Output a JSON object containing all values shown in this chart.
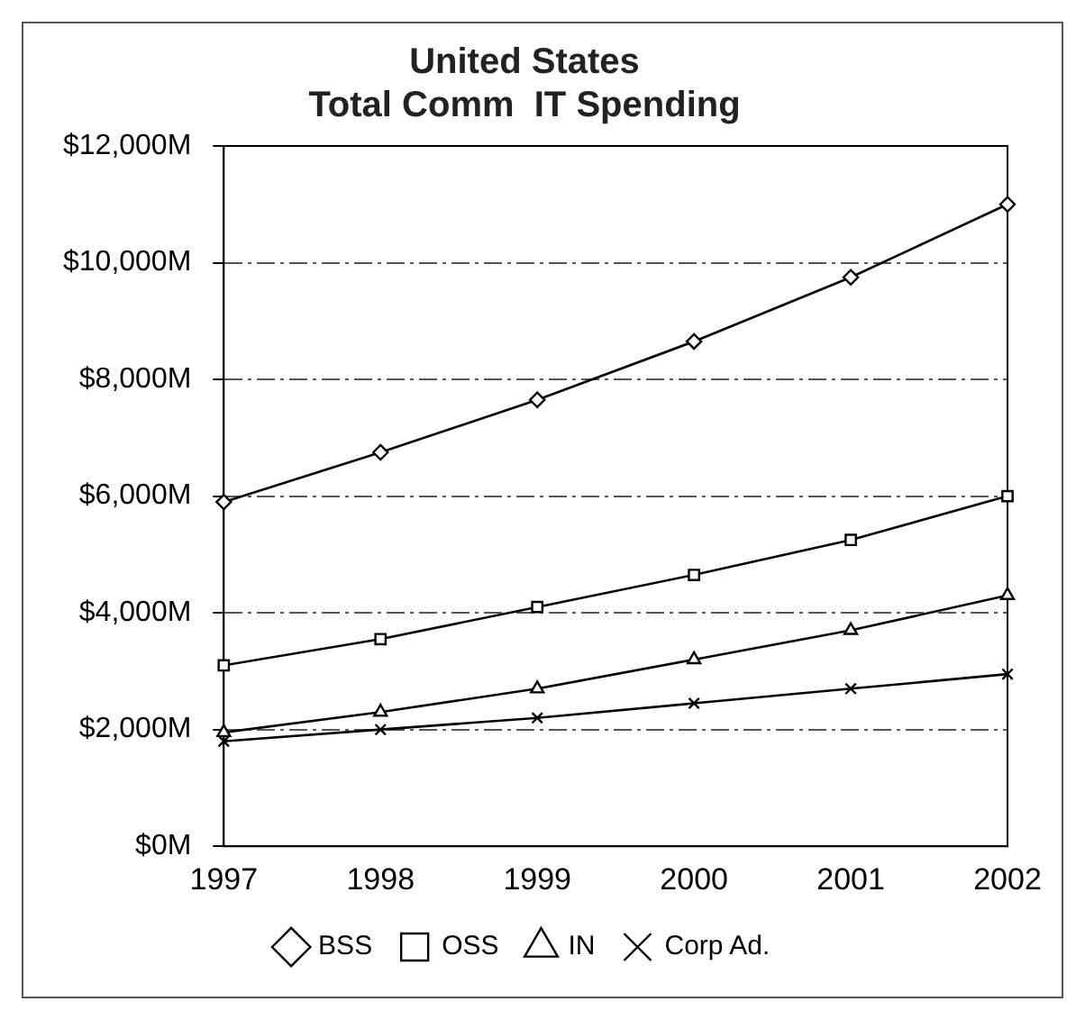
{
  "chart_data": {
    "type": "line",
    "title": "United States\nTotal Comm  IT Spending",
    "categories": [
      "1997",
      "1998",
      "1999",
      "2000",
      "2001",
      "2002"
    ],
    "series": [
      {
        "name": "BSS",
        "color": "#000000",
        "marker": "diamond",
        "values": [
          5900,
          6750,
          7650,
          8650,
          9750,
          11000
        ]
      },
      {
        "name": "OSS",
        "color": "#000000",
        "marker": "square",
        "values": [
          3100,
          3550,
          4100,
          4650,
          5250,
          6000
        ]
      },
      {
        "name": "IN",
        "color": "#000000",
        "marker": "triangle",
        "values": [
          1950,
          2300,
          2700,
          3200,
          3700,
          4300
        ]
      },
      {
        "name": "Corp Ad.",
        "color": "#000000",
        "marker": "cross",
        "values": [
          1800,
          2000,
          2200,
          2450,
          2700,
          2950
        ]
      }
    ],
    "ylim": [
      0,
      12000
    ],
    "yticks": [
      {
        "value": 0,
        "label": "$0M"
      },
      {
        "value": 2000,
        "label": "$2,000M"
      },
      {
        "value": 4000,
        "label": "$4,000M"
      },
      {
        "value": 6000,
        "label": "$6,000M"
      },
      {
        "value": 8000,
        "label": "$8,000M"
      },
      {
        "value": 10000,
        "label": "$10,000M"
      },
      {
        "value": 12000,
        "label": "$12,000M"
      }
    ],
    "grid": "y",
    "legend": "bottom",
    "line_style": "solid"
  }
}
